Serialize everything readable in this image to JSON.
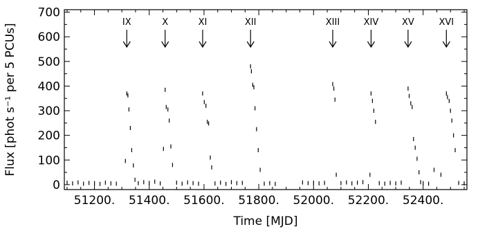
{
  "chart_data": {
    "type": "scatter",
    "title": "",
    "xlabel": "Time [MJD]",
    "ylabel": "Flux [phot s⁻¹ per 5 PCUs]",
    "xlim": [
      51090,
      52560
    ],
    "ylim": [
      -20,
      710
    ],
    "x_ticks": [
      51200,
      51400,
      51600,
      51800,
      52000,
      52200,
      52400
    ],
    "x_tick_labels": [
      "51200.",
      "51400.",
      "51600.",
      "51800.",
      "52000.",
      "52200.",
      "52400."
    ],
    "y_ticks": [
      0,
      100,
      200,
      300,
      400,
      500,
      600,
      700
    ],
    "y_tick_labels": [
      "0",
      "100",
      "200",
      "300",
      "400",
      "500",
      "600",
      "700"
    ],
    "outbursts": [
      {
        "label": "IX",
        "x": 51318
      },
      {
        "label": "X",
        "x": 51458
      },
      {
        "label": "XI",
        "x": 51595
      },
      {
        "label": "XII",
        "x": 51770
      },
      {
        "label": "XIII",
        "x": 52070
      },
      {
        "label": "XIV",
        "x": 52210
      },
      {
        "label": "XV",
        "x": 52345
      },
      {
        "label": "XVI",
        "x": 52485
      }
    ],
    "marker_color": "#000000",
    "points": [
      [
        51318,
        370
      ],
      [
        51322,
        362
      ],
      [
        51326,
        305
      ],
      [
        51331,
        230
      ],
      [
        51336,
        140
      ],
      [
        51342,
        78
      ],
      [
        51348,
        20
      ],
      [
        51313,
        96
      ],
      [
        51458,
        385
      ],
      [
        51462,
        315
      ],
      [
        51468,
        305
      ],
      [
        51473,
        260
      ],
      [
        51479,
        155
      ],
      [
        51485,
        80
      ],
      [
        51452,
        145
      ],
      [
        51595,
        370
      ],
      [
        51601,
        335
      ],
      [
        51607,
        320
      ],
      [
        51612,
        255
      ],
      [
        51617,
        248
      ],
      [
        51623,
        110
      ],
      [
        51628,
        70
      ],
      [
        51770,
        480
      ],
      [
        51773,
        460
      ],
      [
        51778,
        405
      ],
      [
        51782,
        395
      ],
      [
        51786,
        310
      ],
      [
        51792,
        225
      ],
      [
        51798,
        140
      ],
      [
        51805,
        60
      ],
      [
        52070,
        408
      ],
      [
        52074,
        390
      ],
      [
        52078,
        345
      ],
      [
        52083,
        40
      ],
      [
        52210,
        370
      ],
      [
        52215,
        340
      ],
      [
        52220,
        300
      ],
      [
        52226,
        255
      ],
      [
        52206,
        40
      ],
      [
        52345,
        390
      ],
      [
        52349,
        360
      ],
      [
        52355,
        330
      ],
      [
        52360,
        315
      ],
      [
        52365,
        185
      ],
      [
        52371,
        150
      ],
      [
        52378,
        105
      ],
      [
        52385,
        50
      ],
      [
        52391,
        10
      ],
      [
        52485,
        370
      ],
      [
        52489,
        355
      ],
      [
        52495,
        340
      ],
      [
        52500,
        300
      ],
      [
        52505,
        260
      ],
      [
        52511,
        200
      ],
      [
        52517,
        140
      ],
      [
        52440,
        60
      ],
      [
        52465,
        40
      ],
      [
        51100,
        8
      ],
      [
        51120,
        5
      ],
      [
        51140,
        9
      ],
      [
        51160,
        4
      ],
      [
        51180,
        7
      ],
      [
        51200,
        6
      ],
      [
        51220,
        3
      ],
      [
        51240,
        8
      ],
      [
        51260,
        5
      ],
      [
        51280,
        4
      ],
      [
        51360,
        6
      ],
      [
        51380,
        10
      ],
      [
        51400,
        7
      ],
      [
        51420,
        12
      ],
      [
        51440,
        5
      ],
      [
        51500,
        8
      ],
      [
        51520,
        4
      ],
      [
        51540,
        9
      ],
      [
        51560,
        6
      ],
      [
        51580,
        4
      ],
      [
        51640,
        5
      ],
      [
        51660,
        8
      ],
      [
        51680,
        3
      ],
      [
        51700,
        10
      ],
      [
        51720,
        6
      ],
      [
        51740,
        7
      ],
      [
        51820,
        4
      ],
      [
        51840,
        6
      ],
      [
        51860,
        3
      ],
      [
        51960,
        9
      ],
      [
        51980,
        6
      ],
      [
        52000,
        8
      ],
      [
        52020,
        5
      ],
      [
        52040,
        7
      ],
      [
        52100,
        6
      ],
      [
        52120,
        9
      ],
      [
        52140,
        5
      ],
      [
        52160,
        8
      ],
      [
        52180,
        10
      ],
      [
        52240,
        6
      ],
      [
        52260,
        4
      ],
      [
        52280,
        7
      ],
      [
        52300,
        5
      ],
      [
        52320,
        8
      ],
      [
        52400,
        6
      ],
      [
        52420,
        4
      ],
      [
        52530,
        7
      ],
      [
        52550,
        5
      ]
    ]
  }
}
